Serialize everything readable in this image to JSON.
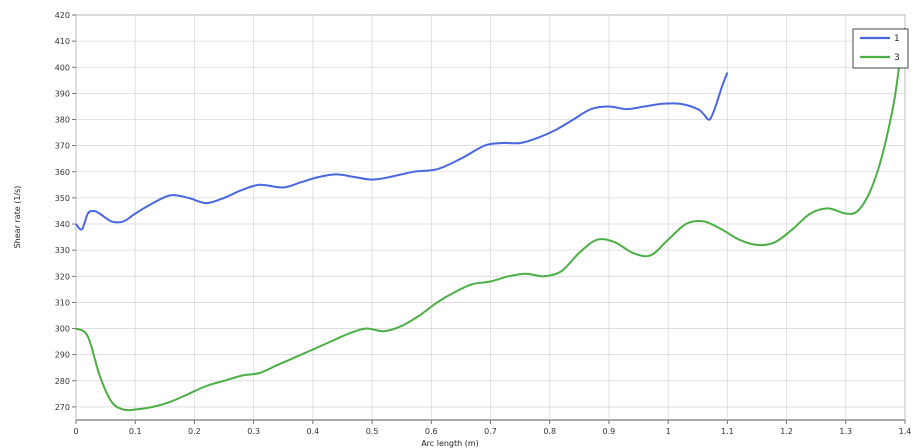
{
  "chart_data": {
    "type": "line",
    "xlabel": "Arc length (m)",
    "ylabel": "Shear rate (1/s)",
    "xlim": [
      0,
      1.4
    ],
    "ylim": [
      265,
      420
    ],
    "xticks": [
      "0",
      "0.1",
      "0.2",
      "0.3",
      "0.4",
      "0.5",
      "0.6",
      "0.7",
      "0.8",
      "0.9",
      "1",
      "1.1",
      "1.2",
      "1.3",
      "1.4"
    ],
    "yticks": [
      "270",
      "280",
      "290",
      "300",
      "310",
      "320",
      "330",
      "340",
      "350",
      "360",
      "370",
      "380",
      "390",
      "400",
      "410",
      "420"
    ],
    "grid": true,
    "legend_position": "top-right",
    "series": [
      {
        "name": "1",
        "color": "#4a67e0",
        "x": [
          0.0,
          0.01,
          0.02,
          0.03,
          0.04,
          0.06,
          0.08,
          0.1,
          0.13,
          0.16,
          0.19,
          0.22,
          0.25,
          0.28,
          0.31,
          0.35,
          0.38,
          0.41,
          0.44,
          0.47,
          0.5,
          0.53,
          0.57,
          0.61,
          0.65,
          0.69,
          0.72,
          0.75,
          0.78,
          0.81,
          0.84,
          0.87,
          0.9,
          0.93,
          0.96,
          0.99,
          1.02,
          1.05,
          1.06,
          1.07,
          1.08,
          1.09,
          1.1
        ],
        "y": [
          340,
          338,
          344,
          345,
          344,
          341,
          341,
          344,
          348,
          351,
          350,
          348,
          350,
          353,
          355,
          354,
          356,
          358,
          359,
          358,
          357,
          358,
          360,
          361,
          365,
          370,
          371,
          371,
          373,
          376,
          380,
          384,
          385,
          384,
          385,
          386,
          386,
          384,
          382,
          380,
          385,
          392,
          398
        ]
      },
      {
        "name": "3",
        "color": "#4caf45",
        "x": [
          0.0,
          0.02,
          0.04,
          0.06,
          0.08,
          0.1,
          0.13,
          0.16,
          0.19,
          0.22,
          0.25,
          0.28,
          0.31,
          0.34,
          0.37,
          0.4,
          0.43,
          0.46,
          0.49,
          0.52,
          0.55,
          0.58,
          0.61,
          0.64,
          0.67,
          0.7,
          0.73,
          0.76,
          0.79,
          0.82,
          0.85,
          0.88,
          0.91,
          0.94,
          0.97,
          1.0,
          1.03,
          1.06,
          1.09,
          1.12,
          1.15,
          1.18,
          1.21,
          1.24,
          1.27,
          1.3,
          1.32,
          1.34,
          1.36,
          1.38,
          1.39,
          1.4
        ],
        "y": [
          300,
          297,
          282,
          272,
          269,
          269,
          270,
          272,
          275,
          278,
          280,
          282,
          283,
          286,
          289,
          292,
          295,
          298,
          300,
          299,
          301,
          305,
          310,
          314,
          317,
          318,
          320,
          321,
          320,
          322,
          329,
          334,
          333,
          329,
          328,
          334,
          340,
          341,
          338,
          334,
          332,
          333,
          338,
          344,
          346,
          344,
          345,
          352,
          365,
          385,
          400,
          415
        ]
      }
    ]
  }
}
